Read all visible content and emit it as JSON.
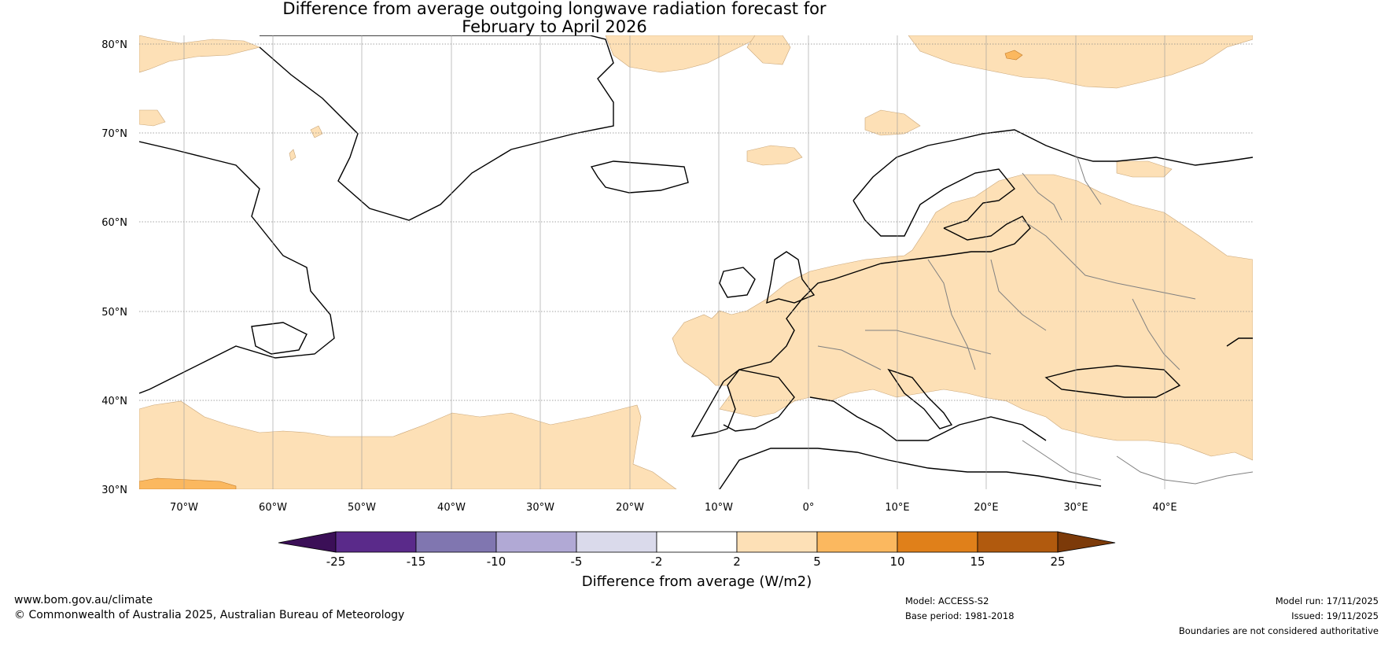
{
  "title": {
    "line1": "Difference from average outgoing longwave radiation forecast for",
    "line2": "February to April 2026"
  },
  "map": {
    "lat_labels": [
      "80°N",
      "70°N",
      "60°N",
      "50°N",
      "40°N",
      "30°N"
    ],
    "lon_labels": [
      "70°W",
      "60°W",
      "50°W",
      "40°W",
      "30°W",
      "20°W",
      "10°W",
      "0°",
      "10°E",
      "20°E",
      "30°E",
      "40°E"
    ],
    "extent": {
      "lon_min": -75,
      "lon_max": 50,
      "lat_min": 30,
      "lat_max": 81
    },
    "anomaly_colors": {
      "land": "#ffffff",
      "positive_2_5": "#fde0b6",
      "positive_5_10": "#fbb85f",
      "coast": "#000000",
      "border": "#808080"
    }
  },
  "colorbar": {
    "tick_labels": [
      "-25",
      "-15",
      "-10",
      "-5",
      "-2",
      "2",
      "5",
      "10",
      "15",
      "25"
    ],
    "colors": [
      "#3b0f57",
      "#5a2a8a",
      "#8076b0",
      "#b1a9d5",
      "#dadaeb",
      "#ffffff",
      "#fde0b6",
      "#fbb85f",
      "#e0801a",
      "#b15a0e",
      "#7c3a09"
    ],
    "label": "Difference from average (W/m2)"
  },
  "footer": {
    "website": "www.bom.gov.au/climate",
    "copyright": "© Commonwealth of Australia 2025, Australian Bureau of Meteorology",
    "model": "Model: ACCESS-S2",
    "base_period": "Base period: 1981-2018",
    "model_run": "Model run: 17/11/2025",
    "issued": "Issued: 19/11/2025",
    "disclaimer": "Boundaries are not considered authoritative"
  }
}
